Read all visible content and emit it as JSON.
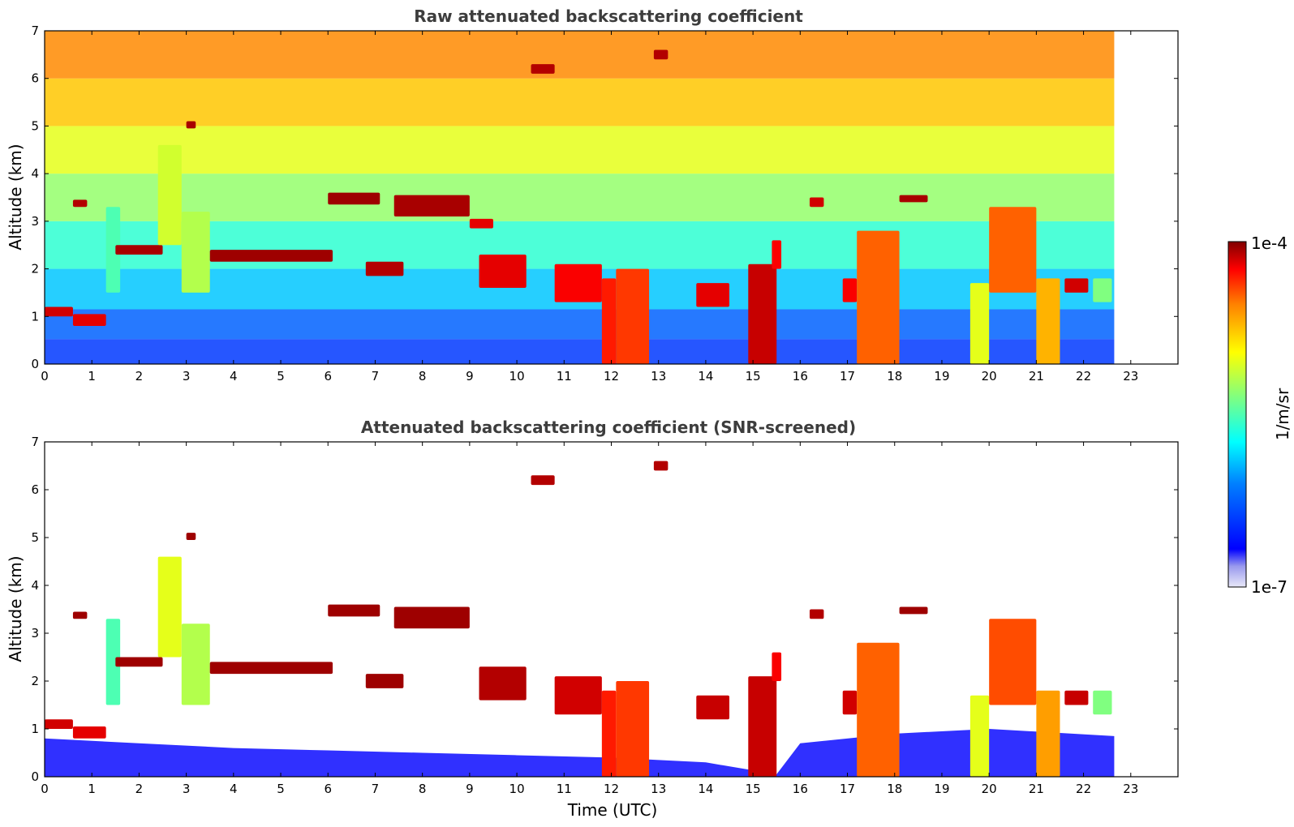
{
  "chart_data": [
    {
      "type": "heatmap",
      "title": "Raw attenuated backscattering coefficient",
      "xlabel": "",
      "ylabel": "Altitude (km)",
      "xlim": [
        0,
        24
      ],
      "ylim": [
        0,
        7
      ],
      "x_ticks": [
        "0",
        "1",
        "2",
        "3",
        "4",
        "5",
        "6",
        "7",
        "8",
        "9",
        "10",
        "11",
        "12",
        "13",
        "14",
        "15",
        "16",
        "17",
        "18",
        "19",
        "20",
        "21",
        "22",
        "23"
      ],
      "y_ticks": [
        "0",
        "1",
        "2",
        "3",
        "4",
        "5",
        "6",
        "7"
      ],
      "data_end_time": 22.65,
      "background_profile": [
        {
          "altitude": 0.25,
          "level": 0.18
        },
        {
          "altitude": 0.8,
          "level": 0.22
        },
        {
          "altitude": 1.5,
          "level": 0.32
        },
        {
          "altitude": 2.5,
          "level": 0.42
        },
        {
          "altitude": 3.5,
          "level": 0.52
        },
        {
          "altitude": 4.5,
          "level": 0.6
        },
        {
          "altitude": 5.5,
          "level": 0.68
        },
        {
          "altitude": 6.5,
          "level": 0.74
        }
      ],
      "features": [
        {
          "t0": 0.0,
          "t1": 0.6,
          "z0": 1.0,
          "z1": 1.2,
          "level": 0.92
        },
        {
          "t0": 0.6,
          "t1": 1.3,
          "z0": 0.8,
          "z1": 1.05,
          "level": 0.9
        },
        {
          "t0": 0.6,
          "t1": 0.9,
          "z0": 3.3,
          "z1": 3.45,
          "level": 0.95
        },
        {
          "t0": 1.3,
          "t1": 1.6,
          "z0": 1.5,
          "z1": 3.3,
          "level": 0.45
        },
        {
          "t0": 1.5,
          "t1": 2.5,
          "z0": 2.3,
          "z1": 2.5,
          "level": 0.96
        },
        {
          "t0": 2.4,
          "t1": 2.9,
          "z0": 2.5,
          "z1": 4.6,
          "level": 0.58
        },
        {
          "t0": 2.9,
          "t1": 3.5,
          "z0": 1.5,
          "z1": 3.2,
          "level": 0.55
        },
        {
          "t0": 3.0,
          "t1": 3.2,
          "z0": 4.95,
          "z1": 5.1,
          "level": 0.96
        },
        {
          "t0": 3.5,
          "t1": 6.1,
          "z0": 2.15,
          "z1": 2.4,
          "level": 0.97
        },
        {
          "t0": 6.0,
          "t1": 7.1,
          "z0": 3.35,
          "z1": 3.6,
          "level": 0.97
        },
        {
          "t0": 6.8,
          "t1": 7.6,
          "z0": 1.85,
          "z1": 2.15,
          "level": 0.95
        },
        {
          "t0": 7.4,
          "t1": 9.0,
          "z0": 3.1,
          "z1": 3.55,
          "level": 0.96
        },
        {
          "t0": 9.0,
          "t1": 9.5,
          "z0": 2.85,
          "z1": 3.05,
          "level": 0.9
        },
        {
          "t0": 9.2,
          "t1": 10.2,
          "z0": 1.6,
          "z1": 2.3,
          "level": 0.9
        },
        {
          "t0": 10.3,
          "t1": 10.8,
          "z0": 6.1,
          "z1": 6.3,
          "level": 0.95
        },
        {
          "t0": 10.8,
          "t1": 11.8,
          "z0": 1.3,
          "z1": 2.1,
          "level": 0.88
        },
        {
          "t0": 11.8,
          "t1": 12.1,
          "z0": 0.0,
          "z1": 1.8,
          "level": 0.85
        },
        {
          "t0": 12.1,
          "t1": 12.8,
          "z0": 0.0,
          "z1": 2.0,
          "level": 0.82
        },
        {
          "t0": 12.9,
          "t1": 13.2,
          "z0": 6.4,
          "z1": 6.6,
          "level": 0.95
        },
        {
          "t0": 13.8,
          "t1": 14.5,
          "z0": 1.2,
          "z1": 1.7,
          "level": 0.9
        },
        {
          "t0": 14.9,
          "t1": 15.5,
          "z0": 0.0,
          "z1": 2.1,
          "level": 0.93
        },
        {
          "t0": 15.4,
          "t1": 15.6,
          "z0": 2.0,
          "z1": 2.6,
          "level": 0.88
        },
        {
          "t0": 16.2,
          "t1": 16.5,
          "z0": 3.3,
          "z1": 3.5,
          "level": 0.92
        },
        {
          "t0": 16.9,
          "t1": 17.2,
          "z0": 1.3,
          "z1": 1.8,
          "level": 0.88
        },
        {
          "t0": 17.2,
          "t1": 18.1,
          "z0": 0.0,
          "z1": 2.8,
          "level": 0.78
        },
        {
          "t0": 18.1,
          "t1": 18.7,
          "z0": 3.4,
          "z1": 3.55,
          "level": 0.96
        },
        {
          "t0": 19.6,
          "t1": 20.0,
          "z0": 0.0,
          "z1": 1.7,
          "level": 0.6
        },
        {
          "t0": 20.0,
          "t1": 21.0,
          "z0": 1.5,
          "z1": 3.3,
          "level": 0.78
        },
        {
          "t0": 21.0,
          "t1": 21.5,
          "z0": 0.0,
          "z1": 1.8,
          "level": 0.7
        },
        {
          "t0": 21.6,
          "t1": 22.1,
          "z0": 1.5,
          "z1": 1.8,
          "level": 0.92
        },
        {
          "t0": 22.2,
          "t1": 22.6,
          "z0": 1.3,
          "z1": 1.8,
          "level": 0.5
        }
      ]
    },
    {
      "type": "heatmap",
      "title": "Attenuated backscattering coefficient (SNR-screened)",
      "xlabel": "Time (UTC)",
      "ylabel": "Altitude (km)",
      "xlim": [
        0,
        24
      ],
      "ylim": [
        0,
        7
      ],
      "x_ticks": [
        "0",
        "1",
        "2",
        "3",
        "4",
        "5",
        "6",
        "7",
        "8",
        "9",
        "10",
        "11",
        "12",
        "13",
        "14",
        "15",
        "16",
        "17",
        "18",
        "19",
        "20",
        "21",
        "22",
        "23"
      ],
      "y_ticks": [
        "0",
        "1",
        "2",
        "3",
        "4",
        "5",
        "6",
        "7"
      ],
      "data_end_time": 22.65,
      "boundary_layer": [
        {
          "t": 0.0,
          "top": 0.8
        },
        {
          "t": 2.0,
          "top": 0.7
        },
        {
          "t": 4.0,
          "top": 0.6
        },
        {
          "t": 6.0,
          "top": 0.55
        },
        {
          "t": 8.0,
          "top": 0.5
        },
        {
          "t": 10.0,
          "top": 0.45
        },
        {
          "t": 12.0,
          "top": 0.4
        },
        {
          "t": 14.0,
          "top": 0.3
        },
        {
          "t": 15.5,
          "top": 0.05
        },
        {
          "t": 16.0,
          "top": 0.7
        },
        {
          "t": 18.0,
          "top": 0.9
        },
        {
          "t": 20.0,
          "top": 1.0
        },
        {
          "t": 22.65,
          "top": 0.85
        }
      ],
      "features": [
        {
          "t0": 0.0,
          "t1": 0.6,
          "z0": 1.0,
          "z1": 1.2,
          "level": 0.92
        },
        {
          "t0": 0.6,
          "t1": 1.3,
          "z0": 0.8,
          "z1": 1.05,
          "level": 0.9
        },
        {
          "t0": 0.6,
          "t1": 0.9,
          "z0": 3.3,
          "z1": 3.45,
          "level": 0.97
        },
        {
          "t0": 1.3,
          "t1": 1.6,
          "z0": 1.5,
          "z1": 3.3,
          "level": 0.45
        },
        {
          "t0": 1.5,
          "t1": 2.5,
          "z0": 2.3,
          "z1": 2.5,
          "level": 0.97
        },
        {
          "t0": 2.4,
          "t1": 2.9,
          "z0": 2.5,
          "z1": 4.6,
          "level": 0.6
        },
        {
          "t0": 2.9,
          "t1": 3.5,
          "z0": 1.5,
          "z1": 3.2,
          "level": 0.55
        },
        {
          "t0": 3.0,
          "t1": 3.2,
          "z0": 4.95,
          "z1": 5.1,
          "level": 0.97
        },
        {
          "t0": 3.5,
          "t1": 6.1,
          "z0": 2.15,
          "z1": 2.4,
          "level": 0.97
        },
        {
          "t0": 6.0,
          "t1": 7.1,
          "z0": 3.35,
          "z1": 3.6,
          "level": 0.97
        },
        {
          "t0": 6.8,
          "t1": 7.6,
          "z0": 1.85,
          "z1": 2.15,
          "level": 0.97
        },
        {
          "t0": 7.4,
          "t1": 9.0,
          "z0": 3.1,
          "z1": 3.55,
          "level": 0.97
        },
        {
          "t0": 9.2,
          "t1": 10.2,
          "z0": 1.6,
          "z1": 2.3,
          "level": 0.95
        },
        {
          "t0": 10.3,
          "t1": 10.8,
          "z0": 6.1,
          "z1": 6.3,
          "level": 0.95
        },
        {
          "t0": 10.8,
          "t1": 11.8,
          "z0": 1.3,
          "z1": 2.1,
          "level": 0.92
        },
        {
          "t0": 11.8,
          "t1": 12.1,
          "z0": 0.0,
          "z1": 1.8,
          "level": 0.85
        },
        {
          "t0": 12.1,
          "t1": 12.8,
          "z0": 0.0,
          "z1": 2.0,
          "level": 0.82
        },
        {
          "t0": 12.9,
          "t1": 13.2,
          "z0": 6.4,
          "z1": 6.6,
          "level": 0.95
        },
        {
          "t0": 13.8,
          "t1": 14.5,
          "z0": 1.2,
          "z1": 1.7,
          "level": 0.93
        },
        {
          "t0": 14.9,
          "t1": 15.5,
          "z0": 0.0,
          "z1": 2.1,
          "level": 0.93
        },
        {
          "t0": 15.4,
          "t1": 15.6,
          "z0": 2.0,
          "z1": 2.6,
          "level": 0.88
        },
        {
          "t0": 16.2,
          "t1": 16.5,
          "z0": 3.3,
          "z1": 3.5,
          "level": 0.95
        },
        {
          "t0": 16.9,
          "t1": 17.2,
          "z0": 1.3,
          "z1": 1.8,
          "level": 0.92
        },
        {
          "t0": 17.2,
          "t1": 18.1,
          "z0": 0.0,
          "z1": 2.8,
          "level": 0.78
        },
        {
          "t0": 18.1,
          "t1": 18.7,
          "z0": 3.4,
          "z1": 3.55,
          "level": 0.97
        },
        {
          "t0": 19.6,
          "t1": 20.0,
          "z0": 0.0,
          "z1": 1.7,
          "level": 0.6
        },
        {
          "t0": 20.0,
          "t1": 21.0,
          "z0": 1.5,
          "z1": 3.3,
          "level": 0.8
        },
        {
          "t0": 21.0,
          "t1": 21.5,
          "z0": 0.0,
          "z1": 1.8,
          "level": 0.72
        },
        {
          "t0": 21.6,
          "t1": 22.1,
          "z0": 1.5,
          "z1": 1.8,
          "level": 0.93
        },
        {
          "t0": 22.2,
          "t1": 22.6,
          "z0": 1.3,
          "z1": 1.8,
          "level": 0.5
        }
      ]
    }
  ],
  "colorbar": {
    "label": "1/m/sr",
    "max_label": "1e-4",
    "min_label": "1e-7",
    "scale": "log",
    "colormap": "jet",
    "range": [
      1e-07,
      0.0001
    ]
  }
}
